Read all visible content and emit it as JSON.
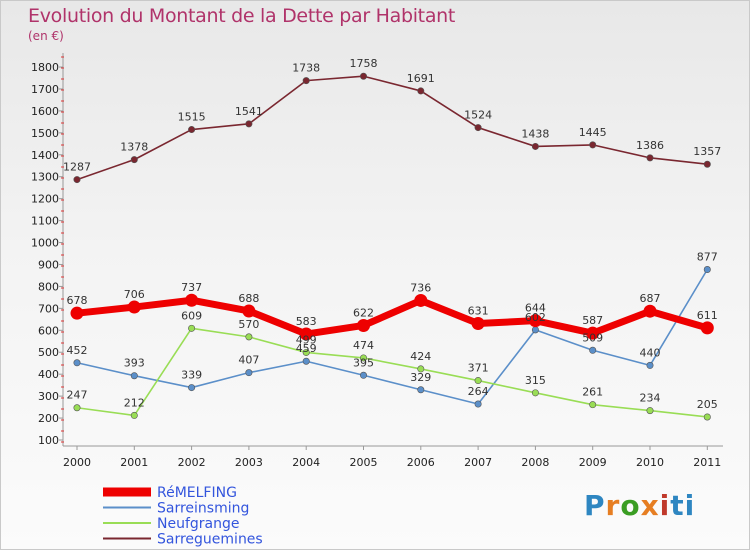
{
  "title": "Evolution du Montant de la Dette par Habitant",
  "subtitle": "(en €)",
  "logo": {
    "text": "Proxiti",
    "letter_colors": [
      "#2e86c1",
      "#e67e22",
      "#3a9d23",
      "#e67e22",
      "#c0392b",
      "#2e86c1",
      "#2e86c1"
    ]
  },
  "chart_data": {
    "type": "line",
    "x": [
      "2000",
      "2001",
      "2002",
      "2003",
      "2004",
      "2005",
      "2006",
      "2007",
      "2008",
      "2009",
      "2010",
      "2011"
    ],
    "yticks": [
      "100",
      "200",
      "300",
      "400",
      "500",
      "600",
      "700",
      "800",
      "900",
      "1000",
      "1100",
      "1200",
      "1300",
      "1400",
      "1500",
      "1600",
      "1700",
      "1800"
    ],
    "ylim": [
      100,
      1800
    ],
    "grid": false,
    "legend_position": "bottom-left",
    "series": [
      {
        "name": "RéMELFING",
        "color": "#ee0000",
        "emphasis": true,
        "values": [
          678,
          706,
          737,
          688,
          583,
          622,
          736,
          631,
          644,
          587,
          687,
          611
        ],
        "labels": [
          "678",
          "706",
          "737",
          "688",
          "583",
          "622",
          "736",
          "631",
          "644",
          "587",
          "687",
          "611"
        ]
      },
      {
        "name": "Sarreinsming",
        "color": "#5b8fc9",
        "emphasis": false,
        "values": [
          452,
          393,
          339,
          407,
          459,
          395,
          329,
          264,
          602,
          509,
          440,
          877
        ],
        "labels": [
          "452",
          "393",
          "339",
          "407",
          "459",
          "395",
          "329",
          "264",
          "602",
          "509",
          "440",
          "877"
        ]
      },
      {
        "name": "Neufgrange",
        "color": "#99dd55",
        "emphasis": false,
        "values": [
          247,
          212,
          609,
          570,
          499,
          474,
          424,
          371,
          315,
          261,
          234,
          205
        ],
        "labels": [
          "247",
          "212",
          "609",
          "570",
          "499",
          "474",
          "424",
          "371",
          "315",
          "261",
          "234",
          "205"
        ]
      },
      {
        "name": "Sarreguemines",
        "color": "#7a2730",
        "emphasis": false,
        "values": [
          1287,
          1378,
          1515,
          1541,
          1738,
          1758,
          1691,
          1524,
          1438,
          1445,
          1386,
          1357
        ],
        "labels": [
          "1287",
          "1378",
          "1515",
          "1541",
          "1738",
          "1758",
          "1691",
          "1524",
          "1438",
          "1445",
          "1386",
          "1357"
        ]
      }
    ]
  }
}
